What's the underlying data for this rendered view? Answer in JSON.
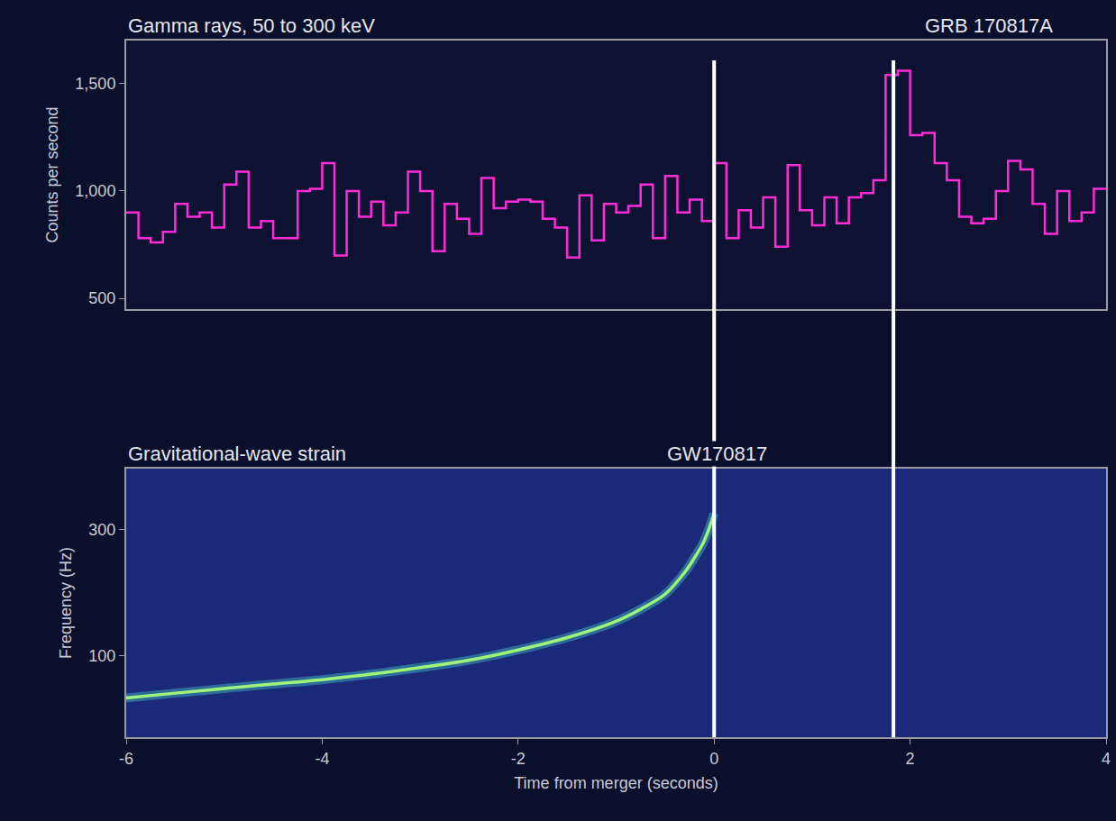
{
  "chart_data": [
    {
      "type": "step",
      "title": "Gamma rays, 50 to 300 keV",
      "annotations": [
        "GRB 170817A"
      ],
      "y_label": "Counts per second",
      "bins": [
        -6.0,
        -5.875,
        -5.75,
        -5.625,
        -5.5,
        -5.375,
        -5.25,
        -5.125,
        -5.0,
        -4.875,
        -4.75,
        -4.625,
        -4.5,
        -4.375,
        -4.25,
        -4.125,
        -4.0,
        -3.875,
        -3.75,
        -3.625,
        -3.5,
        -3.375,
        -3.25,
        -3.125,
        -3.0,
        -2.875,
        -2.75,
        -2.625,
        -2.5,
        -2.375,
        -2.25,
        -2.125,
        -2.0,
        -1.875,
        -1.75,
        -1.625,
        -1.5,
        -1.375,
        -1.25,
        -1.125,
        -1.0,
        -0.875,
        -0.75,
        -0.625,
        -0.5,
        -0.375,
        -0.25,
        -0.125,
        0.0,
        0.125,
        0.25,
        0.375,
        0.5,
        0.625,
        0.75,
        0.875,
        1.0,
        1.125,
        1.25,
        1.375,
        1.5,
        1.625,
        1.75,
        1.875,
        2.0,
        2.125,
        2.25,
        2.375,
        2.5,
        2.625,
        2.75,
        2.875,
        3.0,
        3.125,
        3.25,
        3.375,
        3.5,
        3.625,
        3.75,
        3.875,
        4.0
      ],
      "counts": [
        900,
        780,
        760,
        810,
        940,
        880,
        900,
        830,
        1030,
        1090,
        830,
        860,
        780,
        780,
        1000,
        1010,
        1130,
        700,
        1000,
        880,
        950,
        840,
        900,
        1090,
        1000,
        720,
        940,
        870,
        800,
        1060,
        920,
        950,
        960,
        950,
        870,
        830,
        690,
        980,
        770,
        940,
        900,
        930,
        1030,
        780,
        1070,
        900,
        960,
        860,
        1130,
        780,
        910,
        830,
        970,
        740,
        1120,
        910,
        840,
        970,
        850,
        970,
        990,
        1050,
        1540,
        1560,
        1260,
        1270,
        1130,
        1050,
        880,
        850,
        870,
        1000,
        1140,
        1100,
        940,
        800,
        1000,
        860,
        900,
        1010
      ],
      "color": "#ff2bd6",
      "xlim": [
        -6,
        4
      ],
      "ylim": [
        450,
        1700
      ],
      "yticks": [
        500,
        {
          "value": 1000,
          "label": "1,000"
        },
        {
          "value": 1500,
          "label": "1,500"
        }
      ],
      "tick_labels": "y",
      "grid": false
    },
    {
      "type": "line",
      "title": "Gravitational-wave strain",
      "annotations": [
        "GW170817"
      ],
      "y_label": "Frequency (Hz)",
      "x_label": "Time from merger (seconds)",
      "x": [
        -6,
        -5.5,
        -5,
        -4.5,
        -4,
        -3.5,
        -3,
        -2.5,
        -2,
        -1.5,
        -1,
        -0.75,
        -0.5,
        -0.3,
        -0.2,
        -0.1,
        0
      ],
      "values": [
        69,
        72,
        75,
        78,
        81,
        85,
        90,
        96,
        105,
        117,
        135,
        150,
        171,
        207,
        235,
        273,
        346
      ],
      "color": "#9ff27a",
      "log": "y",
      "xlim": [
        -6,
        4
      ],
      "xticks": [
        -6,
        -4,
        -2,
        0,
        2,
        4
      ],
      "ylim": [
        49,
        512
      ],
      "yticks": [
        100,
        300
      ],
      "grid": false
    }
  ],
  "vertical_lines": [
    0,
    1.83
  ]
}
